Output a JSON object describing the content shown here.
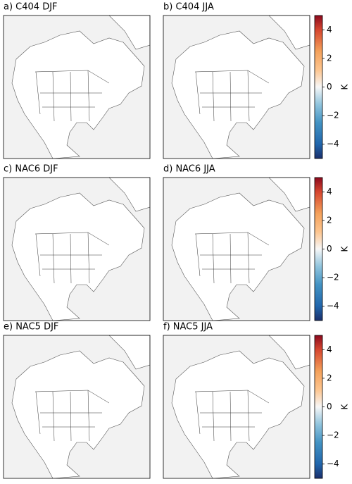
{
  "panels": [
    {
      "title": "a) C404 DJF"
    },
    {
      "title": "b) C404 JJA"
    },
    {
      "title": "c) NAC6 DJF"
    },
    {
      "title": "d) NAC6 JJA"
    },
    {
      "title": "e) NAC5 DJF"
    },
    {
      "title": "f) NAC5 JJA"
    }
  ],
  "colorbar": {
    "label": "K",
    "lim": [
      -5,
      5
    ],
    "ticks": [
      {
        "value": -4,
        "label": "−4"
      },
      {
        "value": -2,
        "label": "−2"
      },
      0,
      2,
      4
    ]
  }
}
